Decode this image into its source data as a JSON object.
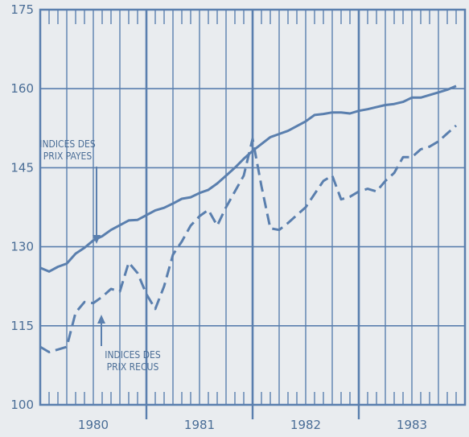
{
  "chart_data": {
    "type": "line",
    "title": "",
    "xlabel": "",
    "ylabel": "",
    "ylim": [
      100,
      175
    ],
    "yticks": [
      100,
      115,
      130,
      145,
      160,
      175
    ],
    "xlim": [
      0,
      48
    ],
    "x_categories": [
      "1980",
      "1981",
      "1982",
      "1983"
    ],
    "grid": true,
    "colors": {
      "line": "#5a7fae",
      "text": "#4a6d96",
      "background": "#e9ecef"
    },
    "series": [
      {
        "name": "INDICES DES PRIX PAYES",
        "style": "solid",
        "x": [
          0,
          1,
          2,
          3,
          4,
          5,
          6,
          7,
          8,
          9,
          10,
          11,
          12,
          13,
          14,
          15,
          16,
          17,
          18,
          19,
          20,
          21,
          22,
          23,
          24,
          25,
          26,
          27,
          28,
          29,
          30,
          31,
          32,
          33,
          34,
          35,
          36,
          37,
          38,
          39,
          40,
          41,
          42,
          43,
          44,
          45,
          46,
          47
        ],
        "values": [
          126.0,
          125.3,
          126.2,
          126.8,
          128.7,
          129.8,
          131.2,
          132.0,
          133.2,
          134.1,
          135.0,
          135.1,
          136.0,
          136.9,
          137.4,
          138.2,
          139.1,
          139.4,
          140.2,
          140.8,
          142.0,
          143.5,
          145.0,
          146.7,
          148.2,
          149.5,
          150.8,
          151.4,
          152.0,
          152.9,
          153.8,
          155.0,
          155.2,
          155.5,
          155.5,
          155.3,
          155.8,
          156.1,
          156.5,
          156.9,
          157.1,
          157.5,
          158.3,
          158.3,
          158.8,
          159.3,
          159.8,
          160.5
        ],
        "label_line1": "INDICES DES",
        "label_line2": "PRIX PAYES"
      },
      {
        "name": "INDICES DES PRIX RECUS",
        "style": "dashed",
        "x": [
          0,
          1,
          2,
          3,
          4,
          5,
          6,
          7,
          8,
          9,
          10,
          11,
          12,
          13,
          14,
          15,
          16,
          17,
          18,
          19,
          20,
          21,
          22,
          23,
          24,
          25,
          26,
          27,
          28,
          29,
          30,
          31,
          32,
          33,
          34,
          35,
          36,
          37,
          38,
          39,
          40,
          41,
          42,
          43,
          44,
          45,
          46,
          47
        ],
        "values": [
          111.0,
          110.0,
          110.5,
          111.0,
          117.5,
          119.5,
          119.3,
          120.5,
          122.0,
          121.5,
          127.0,
          125.0,
          121.0,
          118.2,
          122.5,
          128.5,
          131.0,
          134.0,
          135.8,
          137.0,
          134.0,
          137.5,
          140.5,
          143.5,
          150.5,
          141.5,
          133.5,
          133.2,
          134.5,
          136.0,
          137.5,
          140.0,
          142.5,
          143.5,
          139.0,
          139.5,
          140.5,
          141.0,
          140.5,
          142.5,
          144.0,
          147.0,
          147.0,
          148.5,
          149.0,
          150.0,
          151.5,
          153.0
        ],
        "label_line1": "INDICES DES",
        "label_line2": "PRIX RECUS"
      }
    ]
  }
}
